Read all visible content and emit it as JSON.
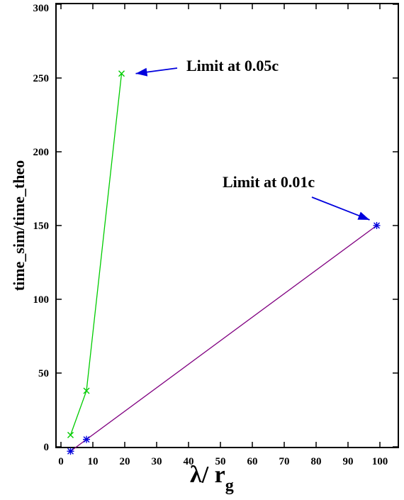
{
  "chart_data": {
    "type": "line",
    "xlabel": "λ/ r",
    "xlabel_subscript": "g",
    "ylabel": "time_sim/time_theo",
    "xlim": [
      -3,
      107
    ],
    "ylim": [
      0,
      300
    ],
    "x_ticks": [
      0,
      10,
      20,
      30,
      40,
      50,
      60,
      70,
      80,
      90,
      100
    ],
    "y_ticks": [
      0,
      50,
      100,
      150,
      200,
      250,
      300
    ],
    "grid": false,
    "series": [
      {
        "color": "#00cc00",
        "marker": "x",
        "x": [
          3,
          8,
          19
        ],
        "y": [
          8,
          38,
          253
        ]
      },
      {
        "color": "#800080",
        "marker_color": "#0000dd",
        "marker": "*",
        "x": [
          3,
          8,
          99
        ],
        "y": [
          -3,
          5,
          150
        ]
      }
    ],
    "annotations": [
      {
        "text": "Limit at 0.05c",
        "target": [
          19,
          253
        ]
      },
      {
        "text": "Limit at 0.01c",
        "target": [
          99,
          150
        ]
      }
    ],
    "arrow_color": "#0000dd"
  }
}
